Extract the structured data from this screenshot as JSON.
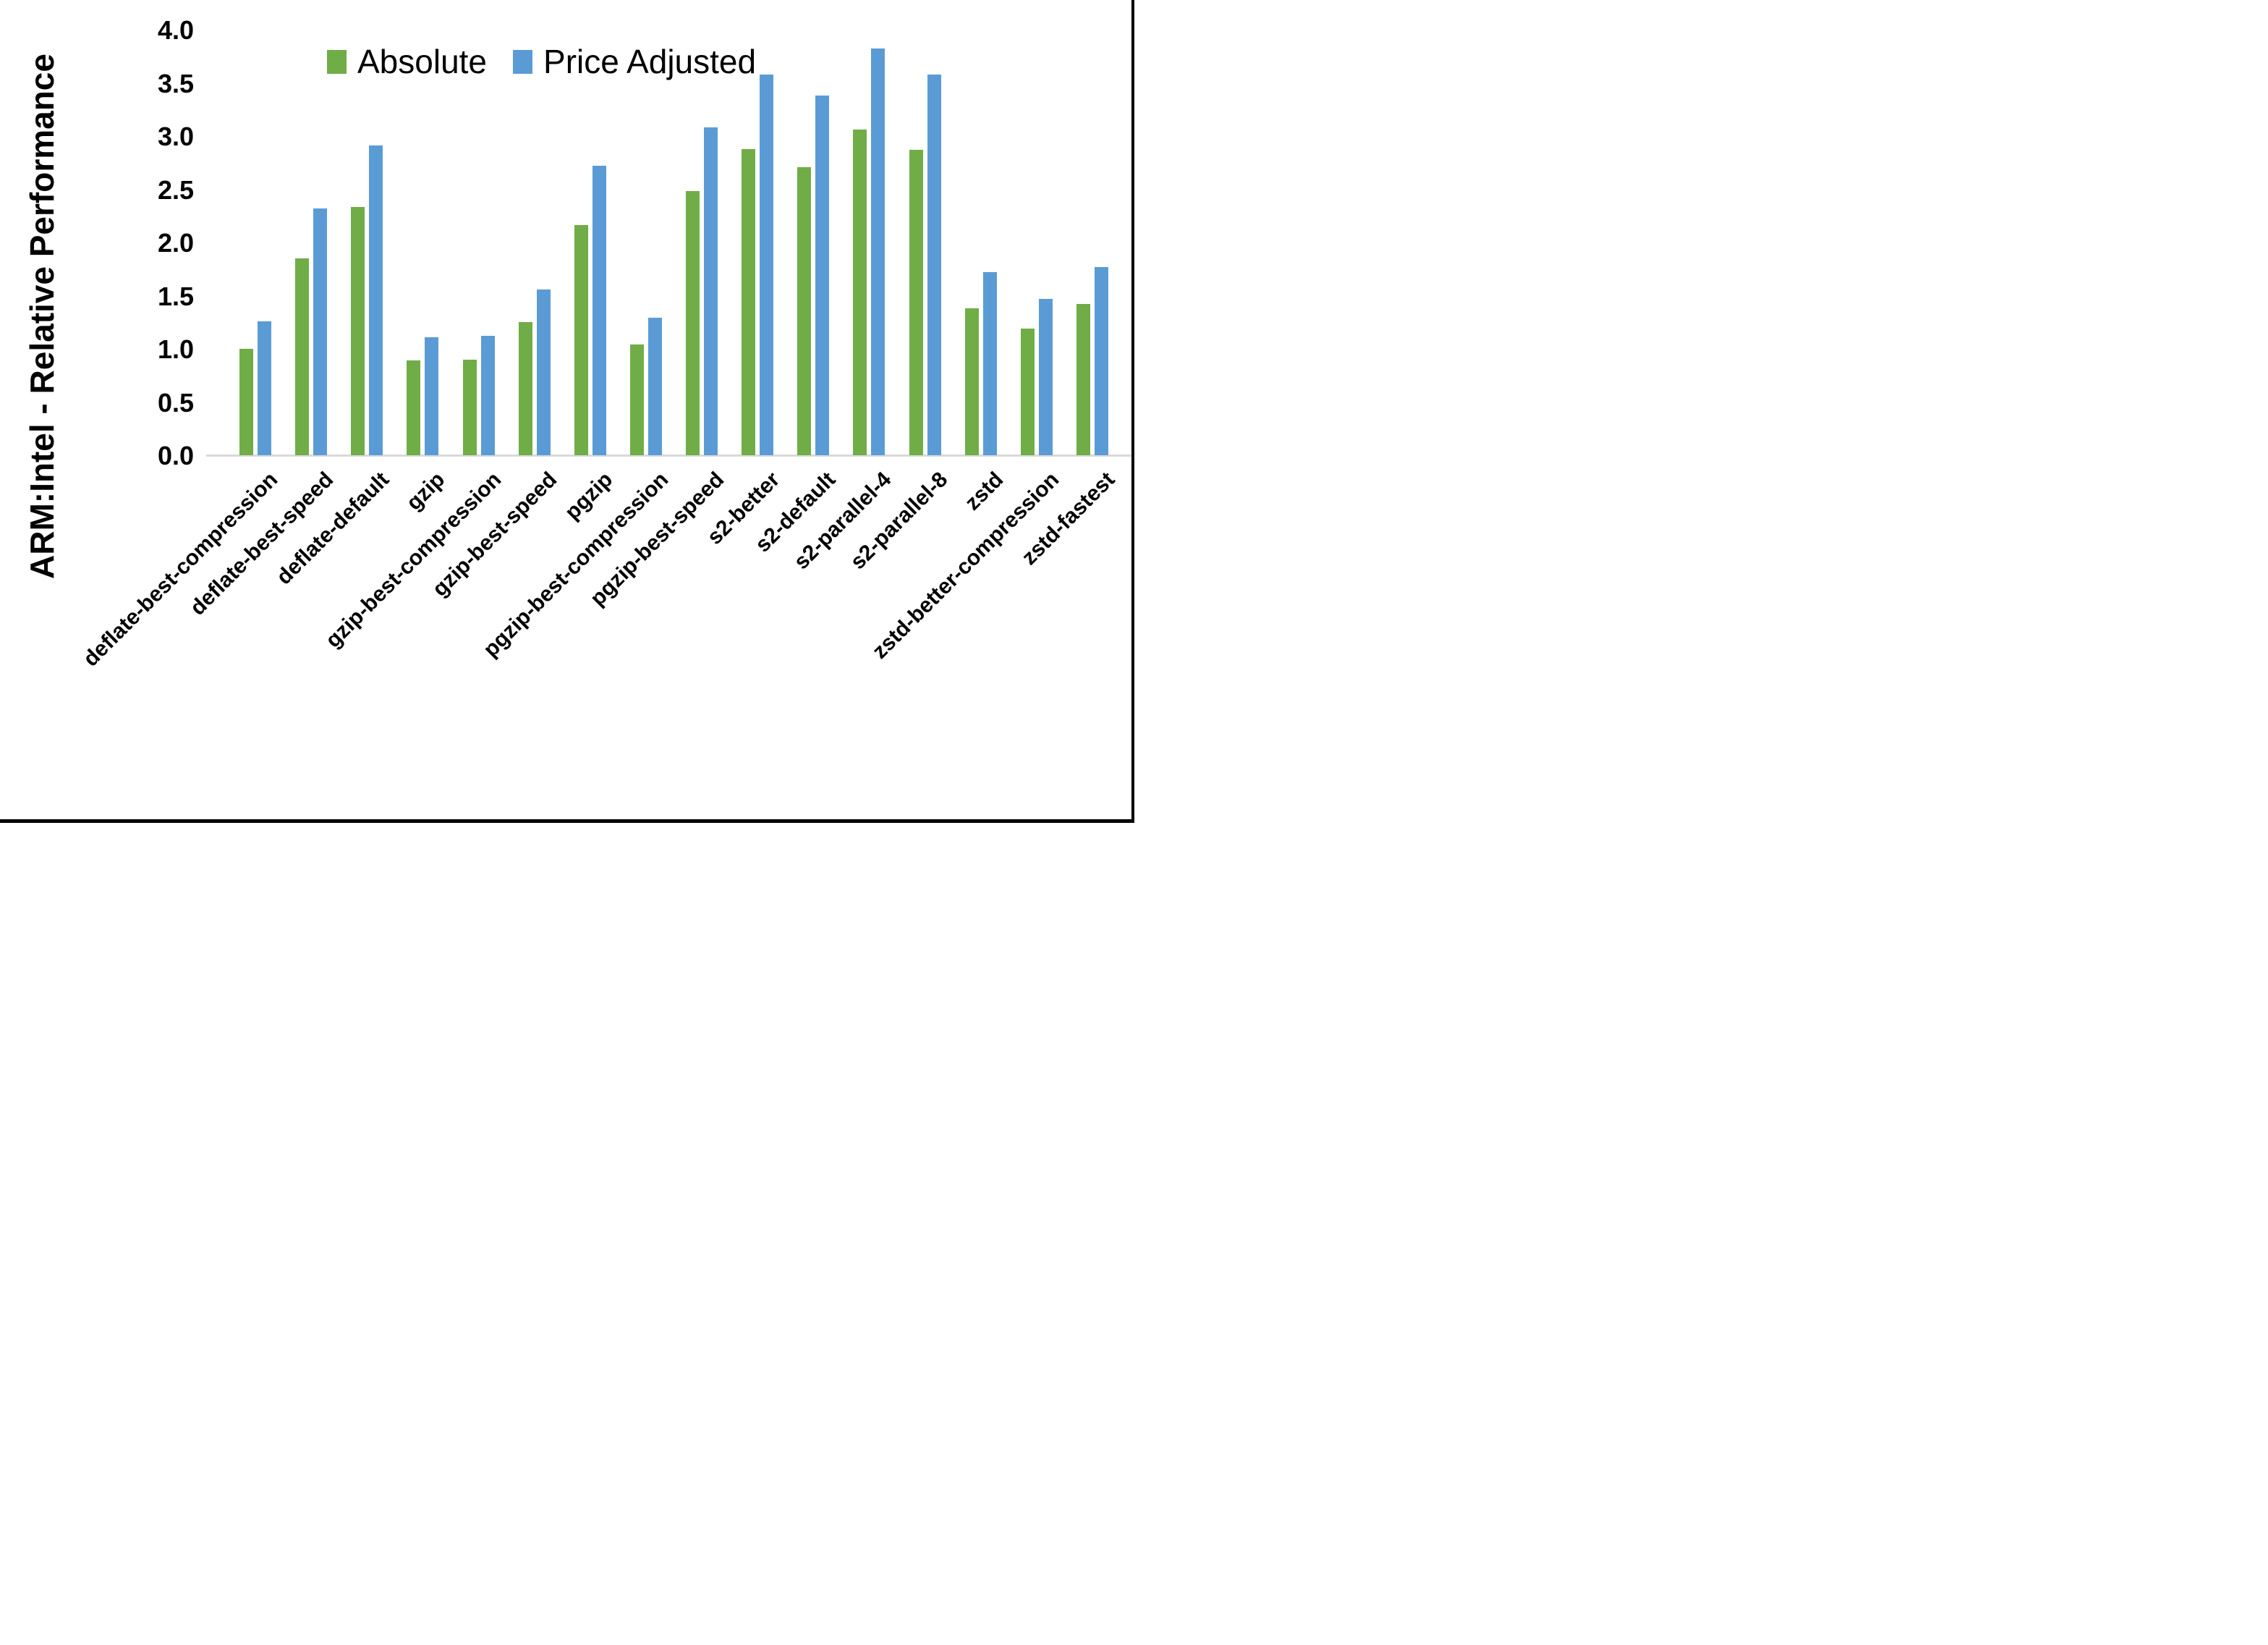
{
  "chart_data": {
    "type": "bar",
    "title": "",
    "xlabel": "",
    "ylabel": "ARM:Intel - Relative Performance",
    "ylim": [
      0.0,
      4.0
    ],
    "ytick_step": 0.5,
    "yticks": [
      "0.0",
      "0.5",
      "1.0",
      "1.5",
      "2.0",
      "2.5",
      "3.0",
      "3.5",
      "4.0"
    ],
    "grid": false,
    "legend_position": "top-center",
    "axis_line_color": "#d9d9d9",
    "categories": [
      "deflate-best-compression",
      "deflate-best-speed",
      "deflate-default",
      "gzip",
      "gzip-best-compression",
      "gzip-best-speed",
      "pgzip",
      "pgzip-best-compression",
      "pgzip-best-speed",
      "s2-better",
      "s2-default",
      "s2-parallel-4",
      "s2-parallel-8",
      "zstd",
      "zstd-better-compression",
      "zstd-fastest"
    ],
    "series": [
      {
        "name": "Absolute",
        "color": "#70ad47",
        "values": [
          1.0,
          1.85,
          2.33,
          0.89,
          0.9,
          1.25,
          2.16,
          1.04,
          2.48,
          2.88,
          2.71,
          3.06,
          2.87,
          1.38,
          1.19,
          1.42
        ]
      },
      {
        "name": "Price Adjusted",
        "color": "#5b9bd5",
        "values": [
          1.26,
          2.32,
          2.91,
          1.11,
          1.12,
          1.56,
          2.72,
          1.29,
          3.08,
          3.58,
          3.38,
          3.82,
          3.58,
          1.72,
          1.47,
          1.77
        ]
      }
    ]
  }
}
